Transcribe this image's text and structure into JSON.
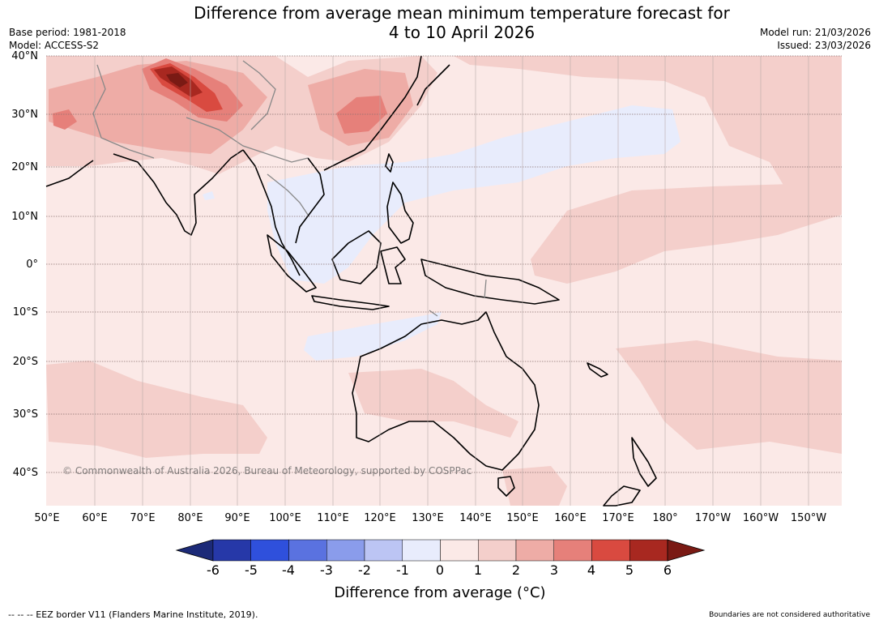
{
  "header": {
    "title_line1": "Difference from average mean minimum temperature forecast for",
    "title_line2": "4 to 10 April 2026",
    "base_period": "Base period: 1981-2018",
    "model": "Model: ACCESS-S2",
    "model_run": "Model run: 21/03/2026",
    "issued": "Issued: 23/03/2026"
  },
  "map": {
    "lat_labels": [
      "40°N",
      "30°N",
      "20°N",
      "10°N",
      "0°",
      "10°S",
      "20°S",
      "30°S",
      "40°S"
    ],
    "lon_labels": [
      "50°E",
      "60°E",
      "70°E",
      "80°E",
      "90°E",
      "100°E",
      "110°E",
      "120°E",
      "130°E",
      "140°E",
      "150°E",
      "160°E",
      "170°E",
      "180°",
      "170°W",
      "160°W",
      "150°W"
    ],
    "copyright": "© Commonwealth of Australia 2026, Bureau of Meteorology, supported by COSPPac"
  },
  "colorbar": {
    "ticks": [
      "-6",
      "-5",
      "-4",
      "-3",
      "-2",
      "-1",
      "0",
      "1",
      "2",
      "3",
      "4",
      "5",
      "6"
    ],
    "colors": [
      "#1c2a78",
      "#2638a8",
      "#2f50dc",
      "#5a72e0",
      "#8a9ceb",
      "#bcc5f4",
      "#e8ecfc",
      "#fbe9e7",
      "#f4cfcb",
      "#eeaca6",
      "#e6807a",
      "#d94a40",
      "#a82820",
      "#7a1a14"
    ],
    "label": "Difference from average (°C)"
  },
  "footer": {
    "eez_note": "--  --  -- EEZ border V11 (Flanders Marine Institute, 2019).",
    "disclaimer": "Boundaries are not considered authoritative"
  }
}
